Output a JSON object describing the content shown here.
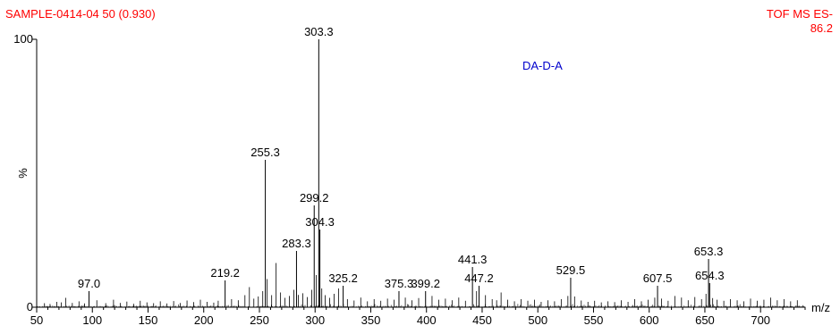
{
  "header": {
    "sample": "SAMPLE-0414-04 50 (0.930)",
    "mode": "TOF MS ES-",
    "intensity": "86.2",
    "compound": "DA-D-A",
    "text_color": "#ff0000",
    "compound_color": "#0000cc"
  },
  "chart_data": {
    "type": "bar",
    "title": "",
    "xlabel": "m/z",
    "ylabel": "%",
    "xlim": [
      50,
      740
    ],
    "ylim": [
      0,
      100
    ],
    "x_ticks": [
      50,
      100,
      150,
      200,
      250,
      300,
      350,
      400,
      450,
      500,
      550,
      600,
      650,
      700
    ],
    "y_ticks": [
      0,
      100
    ],
    "y_tick_labels": [
      "0",
      "100"
    ],
    "grid": false,
    "labeled_peaks": [
      {
        "mz": 97.0,
        "intensity": 6,
        "label": "97.0"
      },
      {
        "mz": 219.2,
        "intensity": 10,
        "label": "219.2"
      },
      {
        "mz": 255.3,
        "intensity": 55,
        "label": "255.3"
      },
      {
        "mz": 283.3,
        "intensity": 21,
        "label": "283.3"
      },
      {
        "mz": 299.2,
        "intensity": 38,
        "label": "299.2"
      },
      {
        "mz": 303.3,
        "intensity": 100,
        "label": "303.3"
      },
      {
        "mz": 304.3,
        "intensity": 29,
        "label": "304.3"
      },
      {
        "mz": 325.2,
        "intensity": 8,
        "label": "325.2"
      },
      {
        "mz": 375.3,
        "intensity": 6,
        "label": "375.3"
      },
      {
        "mz": 399.2,
        "intensity": 6,
        "label": "399.2"
      },
      {
        "mz": 441.3,
        "intensity": 15,
        "label": "441.3"
      },
      {
        "mz": 447.2,
        "intensity": 8,
        "label": "447.2"
      },
      {
        "mz": 529.5,
        "intensity": 11,
        "label": "529.5"
      },
      {
        "mz": 607.5,
        "intensity": 8,
        "label": "607.5"
      },
      {
        "mz": 653.3,
        "intensity": 18,
        "label": "653.3"
      },
      {
        "mz": 654.3,
        "intensity": 9,
        "label": "654.3"
      }
    ],
    "minor_peaks": [
      {
        "mz": 57,
        "intensity": 1.5
      },
      {
        "mz": 62,
        "intensity": 1.2
      },
      {
        "mz": 68,
        "intensity": 2
      },
      {
        "mz": 72,
        "intensity": 1.8
      },
      {
        "mz": 76,
        "intensity": 3.5
      },
      {
        "mz": 82,
        "intensity": 1.6
      },
      {
        "mz": 88,
        "intensity": 2.2
      },
      {
        "mz": 93,
        "intensity": 1.4
      },
      {
        "mz": 104,
        "intensity": 2.6
      },
      {
        "mz": 112,
        "intensity": 1.5
      },
      {
        "mz": 119,
        "intensity": 2.8
      },
      {
        "mz": 125,
        "intensity": 1.6
      },
      {
        "mz": 131,
        "intensity": 2.1
      },
      {
        "mz": 137,
        "intensity": 1.3
      },
      {
        "mz": 143,
        "intensity": 2.4
      },
      {
        "mz": 149,
        "intensity": 1.8
      },
      {
        "mz": 155,
        "intensity": 1.5
      },
      {
        "mz": 161,
        "intensity": 2.2
      },
      {
        "mz": 167,
        "intensity": 1.4
      },
      {
        "mz": 173,
        "intensity": 2.3
      },
      {
        "mz": 179,
        "intensity": 1.6
      },
      {
        "mz": 185,
        "intensity": 2.5
      },
      {
        "mz": 191,
        "intensity": 1.9
      },
      {
        "mz": 197,
        "intensity": 2.8
      },
      {
        "mz": 203,
        "intensity": 2.0
      },
      {
        "mz": 209,
        "intensity": 1.7
      },
      {
        "mz": 213,
        "intensity": 2.4
      },
      {
        "mz": 225,
        "intensity": 3.0
      },
      {
        "mz": 231,
        "intensity": 2.6
      },
      {
        "mz": 237,
        "intensity": 4.5
      },
      {
        "mz": 241,
        "intensity": 7.5
      },
      {
        "mz": 245,
        "intensity": 3.2
      },
      {
        "mz": 249,
        "intensity": 4.0
      },
      {
        "mz": 253,
        "intensity": 6.0
      },
      {
        "mz": 257,
        "intensity": 10.5
      },
      {
        "mz": 261,
        "intensity": 4.5
      },
      {
        "mz": 265,
        "intensity": 16.5
      },
      {
        "mz": 269,
        "intensity": 5.5
      },
      {
        "mz": 273,
        "intensity": 3.5
      },
      {
        "mz": 277,
        "intensity": 4.2
      },
      {
        "mz": 281,
        "intensity": 6.5
      },
      {
        "mz": 285,
        "intensity": 4.6
      },
      {
        "mz": 289,
        "intensity": 5.2
      },
      {
        "mz": 293,
        "intensity": 3.8
      },
      {
        "mz": 297,
        "intensity": 6.5
      },
      {
        "mz": 301,
        "intensity": 12.0
      },
      {
        "mz": 306,
        "intensity": 7.0
      },
      {
        "mz": 309,
        "intensity": 4.5
      },
      {
        "mz": 313,
        "intensity": 3.5
      },
      {
        "mz": 317,
        "intensity": 5.0
      },
      {
        "mz": 321,
        "intensity": 7.0
      },
      {
        "mz": 329,
        "intensity": 3.0
      },
      {
        "mz": 335,
        "intensity": 2.5
      },
      {
        "mz": 341,
        "intensity": 3.6
      },
      {
        "mz": 347,
        "intensity": 2.2
      },
      {
        "mz": 353,
        "intensity": 3.0
      },
      {
        "mz": 359,
        "intensity": 2.4
      },
      {
        "mz": 365,
        "intensity": 3.2
      },
      {
        "mz": 371,
        "intensity": 2.8
      },
      {
        "mz": 381,
        "intensity": 3.6
      },
      {
        "mz": 387,
        "intensity": 2.6
      },
      {
        "mz": 393,
        "intensity": 3.4
      },
      {
        "mz": 405,
        "intensity": 4.2
      },
      {
        "mz": 411,
        "intensity": 2.8
      },
      {
        "mz": 417,
        "intensity": 3.2
      },
      {
        "mz": 423,
        "intensity": 2.6
      },
      {
        "mz": 429,
        "intensity": 3.6
      },
      {
        "mz": 435,
        "intensity": 2.4
      },
      {
        "mz": 445,
        "intensity": 6.0
      },
      {
        "mz": 453,
        "intensity": 4.5
      },
      {
        "mz": 459,
        "intensity": 3.0
      },
      {
        "mz": 463,
        "intensity": 2.6
      },
      {
        "mz": 467,
        "intensity": 5.5
      },
      {
        "mz": 473,
        "intensity": 2.8
      },
      {
        "mz": 479,
        "intensity": 2.2
      },
      {
        "mz": 485,
        "intensity": 3.0
      },
      {
        "mz": 491,
        "intensity": 2.4
      },
      {
        "mz": 497,
        "intensity": 2.8
      },
      {
        "mz": 503,
        "intensity": 2.0
      },
      {
        "mz": 509,
        "intensity": 2.6
      },
      {
        "mz": 515,
        "intensity": 2.2
      },
      {
        "mz": 521,
        "intensity": 3.0
      },
      {
        "mz": 527,
        "intensity": 4.2
      },
      {
        "mz": 533,
        "intensity": 4.0
      },
      {
        "mz": 539,
        "intensity": 2.5
      },
      {
        "mz": 545,
        "intensity": 2.0
      },
      {
        "mz": 551,
        "intensity": 2.4
      },
      {
        "mz": 557,
        "intensity": 1.8
      },
      {
        "mz": 563,
        "intensity": 2.2
      },
      {
        "mz": 569,
        "intensity": 1.9
      },
      {
        "mz": 575,
        "intensity": 2.6
      },
      {
        "mz": 581,
        "intensity": 2.0
      },
      {
        "mz": 587,
        "intensity": 3.0
      },
      {
        "mz": 593,
        "intensity": 2.2
      },
      {
        "mz": 599,
        "intensity": 2.8
      },
      {
        "mz": 605,
        "intensity": 3.6
      },
      {
        "mz": 611,
        "intensity": 3.2
      },
      {
        "mz": 617,
        "intensity": 2.4
      },
      {
        "mz": 623,
        "intensity": 4.2
      },
      {
        "mz": 629,
        "intensity": 3.6
      },
      {
        "mz": 635,
        "intensity": 2.6
      },
      {
        "mz": 641,
        "intensity": 3.8
      },
      {
        "mz": 647,
        "intensity": 3.0
      },
      {
        "mz": 651,
        "intensity": 5.0
      },
      {
        "mz": 657,
        "intensity": 3.4
      },
      {
        "mz": 661,
        "intensity": 2.8
      },
      {
        "mz": 667,
        "intensity": 2.4
      },
      {
        "mz": 673,
        "intensity": 3.0
      },
      {
        "mz": 679,
        "intensity": 2.6
      },
      {
        "mz": 685,
        "intensity": 2.2
      },
      {
        "mz": 691,
        "intensity": 3.2
      },
      {
        "mz": 697,
        "intensity": 2.4
      },
      {
        "mz": 703,
        "intensity": 2.8
      },
      {
        "mz": 709,
        "intensity": 3.6
      },
      {
        "mz": 715,
        "intensity": 2.6
      },
      {
        "mz": 721,
        "intensity": 3.0
      },
      {
        "mz": 727,
        "intensity": 2.2
      },
      {
        "mz": 733,
        "intensity": 2.6
      }
    ]
  }
}
